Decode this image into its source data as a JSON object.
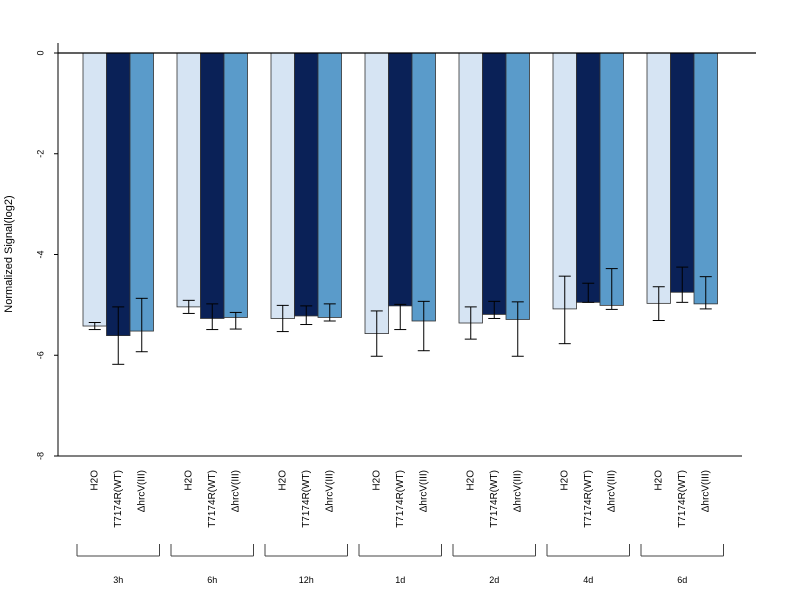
{
  "chart_data": {
    "type": "bar",
    "ylabel": "Normalized Signal(log2)",
    "ylim": [
      -8,
      0
    ],
    "yticks": [
      "0",
      "-2",
      "-4",
      "-6",
      "-8"
    ],
    "groups": [
      "3h",
      "6h",
      "12h",
      "1d",
      "2d",
      "4d",
      "6d"
    ],
    "series": [
      {
        "name": "H2O",
        "color": "#d6e4f3",
        "values": [
          -5.42,
          -5.04,
          -5.27,
          -5.57,
          -5.36,
          -5.08,
          -4.97
        ],
        "err_low": [
          -5.49,
          -5.17,
          -5.53,
          -6.02,
          -5.68,
          -5.77,
          -5.31
        ],
        "err_high": [
          -5.35,
          -4.91,
          -5.01,
          -5.12,
          -5.04,
          -4.43,
          -4.64
        ]
      },
      {
        "name": "T7174R(WT)",
        "color": "#0a2157",
        "values": [
          -5.61,
          -5.27,
          -5.22,
          -5.02,
          -5.19,
          -4.95,
          -4.75
        ],
        "err_low": [
          -6.18,
          -5.49,
          -5.39,
          -5.49,
          -5.27,
          -4.95,
          -4.95
        ],
        "err_high": [
          -5.04,
          -4.98,
          -5.02,
          -4.99,
          -4.93,
          -4.57,
          -4.25
        ]
      },
      {
        "name": "ΔhrcV(III)",
        "color": "#5a9bca",
        "values": [
          -5.52,
          -5.25,
          -5.25,
          -5.32,
          -5.29,
          -5.01,
          -4.98
        ],
        "err_low": [
          -5.93,
          -5.48,
          -5.32,
          -5.91,
          -6.02,
          -5.09,
          -5.08
        ],
        "err_high": [
          -4.87,
          -5.15,
          -4.98,
          -4.93,
          -4.94,
          -4.28,
          -4.44
        ]
      }
    ],
    "legend": "none",
    "grid": false
  }
}
